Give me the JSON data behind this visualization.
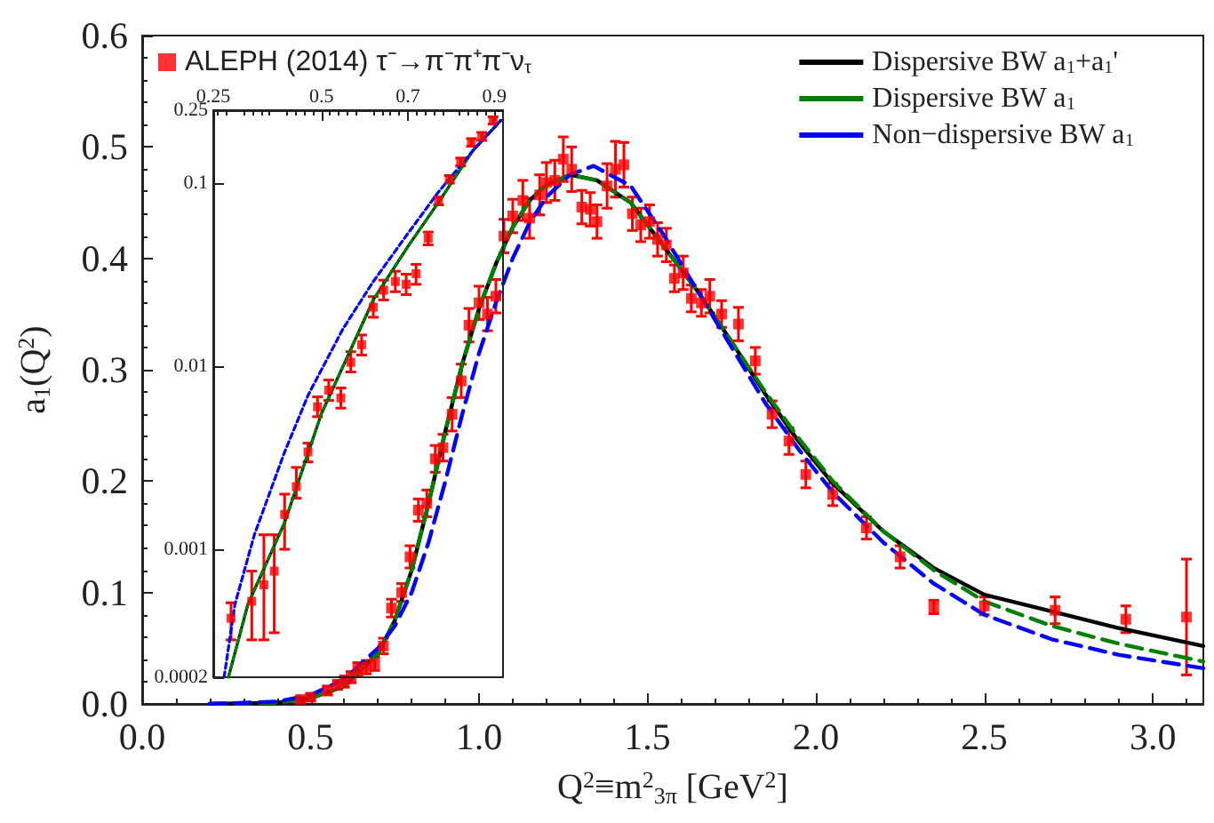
{
  "chart_data": [
    {
      "type": "line",
      "xlabel": "Q$^{2}$≡m$^{2}$$_{3π}$ [GeV$^{2}$]",
      "ylabel": "a$_{1}$(Q$^{2}$)",
      "xlim": [
        0,
        3.15
      ],
      "xticks": [
        {
          "value": 0,
          "label": "0.0"
        },
        0.5,
        {
          "value": 1,
          "label": "1.0"
        },
        1.5,
        {
          "value": 2,
          "label": "2.0"
        },
        2.5,
        {
          "value": 3,
          "label": "3.0"
        }
      ],
      "ylim": [
        0,
        0.6
      ],
      "yticks": [
        {
          "value": 0,
          "label": "0.0"
        },
        0.1,
        0.2,
        0.3,
        0.4,
        0.5,
        0.6
      ],
      "legend": "top",
      "series": [
        {
          "name": "ALEPH (2014) τ⁻→π⁻π⁺π⁻ν$_{τ}$",
          "type": "scatter",
          "color": "#ff0000",
          "marker": "square",
          "x": [
            0.47,
            0.5,
            0.55,
            0.58,
            0.6,
            0.62,
            0.64,
            0.665,
            0.69,
            0.716,
            0.74,
            0.77,
            0.795,
            0.82,
            0.845,
            0.87,
            0.893,
            0.92,
            0.947,
            0.97,
            1.0,
            1.025,
            1.05,
            1.074,
            1.1,
            1.13,
            1.15,
            1.18,
            1.2,
            1.225,
            1.25,
            1.275,
            1.305,
            1.33,
            1.35,
            1.38,
            1.405,
            1.43,
            1.455,
            1.48,
            1.506,
            1.53,
            1.556,
            1.58,
            1.606,
            1.63,
            1.66,
            1.685,
            1.72,
            1.77,
            1.82,
            1.87,
            1.92,
            1.97,
            2.05,
            2.15,
            2.25,
            2.35,
            2.5,
            2.71,
            2.92,
            3.1
          ],
          "values": [
            0.004,
            0.006,
            0.012,
            0.017,
            0.02,
            0.024,
            0.031,
            0.033,
            0.036,
            0.052,
            0.086,
            0.1,
            0.132,
            0.174,
            0.18,
            0.22,
            0.23,
            0.26,
            0.29,
            0.34,
            0.36,
            0.35,
            0.366,
            0.42,
            0.438,
            0.452,
            0.436,
            0.457,
            0.468,
            0.47,
            0.489,
            0.48,
            0.446,
            0.444,
            0.433,
            0.465,
            0.48,
            0.484,
            0.44,
            0.43,
            0.433,
            0.417,
            0.412,
            0.382,
            0.387,
            0.364,
            0.36,
            0.366,
            0.35,
            0.341,
            0.308,
            0.26,
            0.236,
            0.206,
            0.188,
            0.158,
            0.132,
            0.087,
            0.088,
            0.084,
            0.076,
            0.078
          ],
          "errors": [
            0.002,
            0.003,
            0.004,
            0.004,
            0.005,
            0.005,
            0.006,
            0.006,
            0.006,
            0.007,
            0.008,
            0.008,
            0.01,
            0.01,
            0.012,
            0.012,
            0.012,
            0.015,
            0.015,
            0.015,
            0.015,
            0.015,
            0.015,
            0.015,
            0.015,
            0.018,
            0.018,
            0.018,
            0.018,
            0.018,
            0.02,
            0.02,
            0.015,
            0.015,
            0.015,
            0.02,
            0.025,
            0.02,
            0.015,
            0.015,
            0.015,
            0.015,
            0.015,
            0.012,
            0.015,
            0.012,
            0.012,
            0.015,
            0.012,
            0.015,
            0.012,
            0.012,
            0.012,
            0.012,
            0.01,
            0.01,
            0.01,
            0.006,
            0.008,
            0.012,
            0.012,
            0.052
          ]
        },
        {
          "name": "Dispersive BW a$_{1}$+a$_{1}$'",
          "type": "line",
          "color": "#000000",
          "line_style": "solid",
          "marker": "none",
          "x": [
            0.2,
            0.4,
            0.5,
            0.6,
            0.7,
            0.75,
            0.8,
            0.85,
            0.9,
            0.95,
            1.0,
            1.05,
            1.1,
            1.15,
            1.2,
            1.27,
            1.35,
            1.45,
            1.55,
            1.65,
            1.75,
            1.85,
            1.95,
            2.05,
            2.2,
            2.35,
            2.5,
            2.7,
            2.9,
            3.15
          ],
          "values": [
            0,
            0.001,
            0.005,
            0.016,
            0.045,
            0.075,
            0.12,
            0.18,
            0.245,
            0.305,
            0.355,
            0.395,
            0.428,
            0.452,
            0.466,
            0.475,
            0.47,
            0.45,
            0.41,
            0.37,
            0.325,
            0.278,
            0.235,
            0.198,
            0.155,
            0.122,
            0.098,
            0.083,
            0.068,
            0.052
          ]
        },
        {
          "name": "Dispersive BW a$_{1}$",
          "type": "line",
          "color": "#008000",
          "line_style": "dashed",
          "marker": "none",
          "x": [
            0.2,
            0.4,
            0.5,
            0.6,
            0.7,
            0.75,
            0.8,
            0.85,
            0.9,
            0.95,
            1.0,
            1.05,
            1.1,
            1.15,
            1.2,
            1.27,
            1.35,
            1.45,
            1.55,
            1.65,
            1.75,
            1.85,
            1.95,
            2.05,
            2.2,
            2.35,
            2.5,
            2.7,
            2.9,
            3.15
          ],
          "values": [
            0,
            0.001,
            0.005,
            0.016,
            0.045,
            0.075,
            0.12,
            0.18,
            0.245,
            0.305,
            0.355,
            0.395,
            0.428,
            0.452,
            0.466,
            0.475,
            0.47,
            0.45,
            0.41,
            0.37,
            0.325,
            0.28,
            0.238,
            0.2,
            0.155,
            0.12,
            0.092,
            0.07,
            0.054,
            0.038
          ]
        },
        {
          "name": "Non−dispersive BW a$_{1}$",
          "type": "line",
          "color": "#0000ff",
          "line_style": "dashed",
          "marker": "none",
          "x": [
            0.2,
            0.4,
            0.5,
            0.6,
            0.7,
            0.75,
            0.8,
            0.85,
            0.9,
            0.95,
            1.0,
            1.05,
            1.1,
            1.15,
            1.2,
            1.27,
            1.34,
            1.45,
            1.55,
            1.65,
            1.75,
            1.85,
            1.95,
            2.05,
            2.2,
            2.35,
            2.5,
            2.7,
            2.9,
            3.15
          ],
          "values": [
            0,
            0.002,
            0.008,
            0.022,
            0.05,
            0.07,
            0.1,
            0.145,
            0.2,
            0.26,
            0.315,
            0.36,
            0.4,
            0.432,
            0.455,
            0.475,
            0.483,
            0.465,
            0.42,
            0.37,
            0.32,
            0.27,
            0.228,
            0.19,
            0.145,
            0.108,
            0.08,
            0.058,
            0.044,
            0.032
          ]
        }
      ]
    },
    {
      "type": "line",
      "log": "y",
      "xlim": [
        0.25,
        0.92
      ],
      "xticks": [
        0.25,
        0.5,
        0.7,
        0.9
      ],
      "ylim": [
        0.0002,
        0.25
      ],
      "yticks": [
        0.0002,
        0.001,
        0.01,
        0.1,
        0.25
      ],
      "series": [
        {
          "type": "scatter",
          "color": "#ff0000",
          "marker": "square",
          "x": [
            0.291,
            0.339,
            0.367,
            0.391,
            0.415,
            0.442,
            0.469,
            0.491,
            0.517,
            0.545,
            0.568,
            0.593,
            0.62,
            0.644,
            0.671,
            0.696,
            0.719,
            0.747,
            0.771,
            0.796,
            0.822,
            0.847,
            0.871,
            0.897
          ],
          "values": [
            0.00042,
            0.00052,
            0.00064,
            0.00076,
            0.00155,
            0.0022,
            0.0034,
            0.006,
            0.0074,
            0.0067,
            0.0105,
            0.0131,
            0.021,
            0.026,
            0.029,
            0.028,
            0.032,
            0.05,
            0.08,
            0.105,
            0.13,
            0.167,
            0.18,
            0.22
          ],
          "errors": [
            [
              0.00032,
              0.00051
            ],
            [
              0.00032,
              0.00076
            ],
            [
              0.00032,
              0.0012
            ],
            [
              0.00035,
              0.0012
            ],
            [
              0.001,
              0.002
            ],
            [
              0.0019,
              0.0028
            ],
            [
              0.003,
              0.0038
            ],
            [
              0.0053,
              0.0068
            ],
            [
              0.0065,
              0.0084
            ],
            [
              0.0059,
              0.0076
            ],
            [
              0.0093,
              0.012
            ],
            [
              0.0115,
              0.0148
            ],
            [
              0.0185,
              0.024
            ],
            [
              0.023,
              0.0295
            ],
            [
              0.0255,
              0.033
            ],
            [
              0.0246,
              0.0318
            ],
            [
              0.028,
              0.036
            ],
            [
              0.046,
              0.054
            ],
            [
              0.076,
              0.084
            ],
            [
              0.1,
              0.11
            ],
            [
              0.124,
              0.137
            ],
            [
              0.159,
              0.175
            ],
            [
              0.171,
              0.189
            ],
            [
              0.21,
              0.23
            ]
          ]
        },
        {
          "type": "line",
          "color": "#000000",
          "line_style": "solid",
          "marker": "none",
          "x": [
            0.285,
            0.33,
            0.415,
            0.5,
            0.62,
            0.7,
            0.77,
            0.85,
            0.915
          ],
          "values": [
            0.0002,
            0.0005,
            0.0014,
            0.0055,
            0.023,
            0.045,
            0.078,
            0.15,
            0.22
          ]
        },
        {
          "type": "line",
          "color": "#008000",
          "line_style": "dashed",
          "marker": "none",
          "x": [
            0.285,
            0.33,
            0.415,
            0.5,
            0.62,
            0.7,
            0.77,
            0.85,
            0.915
          ],
          "values": [
            0.0002,
            0.0005,
            0.0014,
            0.0055,
            0.023,
            0.045,
            0.078,
            0.15,
            0.22
          ]
        },
        {
          "type": "line",
          "color": "#0000ff",
          "line_style": "dashed",
          "marker": "none",
          "x": [
            0.275,
            0.3,
            0.345,
            0.415,
            0.47,
            0.55,
            0.62,
            0.7,
            0.77,
            0.85,
            0.915
          ],
          "values": [
            0.0002,
            0.0005,
            0.0012,
            0.0034,
            0.007,
            0.016,
            0.029,
            0.053,
            0.089,
            0.15,
            0.22
          ]
        }
      ]
    }
  ]
}
